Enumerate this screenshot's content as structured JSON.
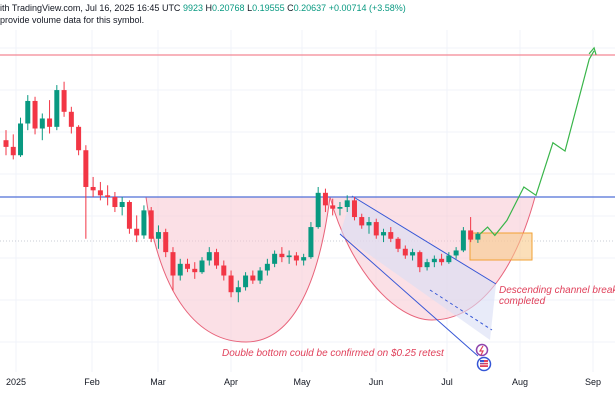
{
  "header": {
    "line1_prefix": "ith TradingView.com, Jul 16, 2025 16:45 UTC",
    "ohlc": {
      "open_label": "",
      "open_value": "9923",
      "high_label": "H",
      "high_value": "0.20768",
      "low_label": "L",
      "low_value": "0.19555",
      "close_label": "C",
      "close_value": "0.20637",
      "change": "+0.00714 (+3.58%)"
    },
    "line2": "provide volume data for this symbol."
  },
  "x_axis": {
    "labels": [
      "2025",
      "Feb",
      "Mar",
      "Apr",
      "May",
      "Jun",
      "Jul",
      "Aug",
      "Sep"
    ]
  },
  "annotations": {
    "double_bottom": "Double bottom could be confirmed on $0.25 retest",
    "channel_line1": "Descending channel breako",
    "channel_line2": "completed"
  },
  "colors": {
    "up": "#089981",
    "down": "#f23645",
    "resistance": "#4f6fd8",
    "target_line": "#f06a7a",
    "cup_fill": "#f7c7d2",
    "cup_stroke": "#e8637a",
    "channel": "#3556d6",
    "channel_fill": "#d8def5",
    "projection": "#39b54a",
    "box_fill": "#f9c98a",
    "box_stroke": "#f2a033",
    "annotation_text": "#e0405a"
  },
  "chart_data": {
    "type": "candlestick",
    "title": "",
    "x_labels": [
      "2025",
      "Feb",
      "Mar",
      "Apr",
      "May",
      "Jun",
      "Jul",
      "Aug",
      "Sep"
    ],
    "levels": [
      {
        "name": "resistance",
        "value": 0.25
      },
      {
        "name": "target",
        "value": 0.42
      }
    ],
    "candles": [
      {
        "t": "Jan 01",
        "o": 0.318,
        "h": 0.33,
        "l": 0.3,
        "c": 0.31
      },
      {
        "t": "Jan 04",
        "o": 0.31,
        "h": 0.325,
        "l": 0.295,
        "c": 0.3
      },
      {
        "t": "Jan 07",
        "o": 0.3,
        "h": 0.345,
        "l": 0.298,
        "c": 0.338
      },
      {
        "t": "Jan 10",
        "o": 0.338,
        "h": 0.372,
        "l": 0.33,
        "c": 0.365
      },
      {
        "t": "Jan 13",
        "o": 0.365,
        "h": 0.37,
        "l": 0.325,
        "c": 0.332
      },
      {
        "t": "Jan 16",
        "o": 0.332,
        "h": 0.35,
        "l": 0.318,
        "c": 0.344
      },
      {
        "t": "Jan 19",
        "o": 0.344,
        "h": 0.366,
        "l": 0.326,
        "c": 0.334
      },
      {
        "t": "Jan 22",
        "o": 0.334,
        "h": 0.384,
        "l": 0.33,
        "c": 0.378
      },
      {
        "t": "Jan 25",
        "o": 0.378,
        "h": 0.388,
        "l": 0.346,
        "c": 0.352
      },
      {
        "t": "Jan 28",
        "o": 0.352,
        "h": 0.358,
        "l": 0.326,
        "c": 0.334
      },
      {
        "t": "Jan 31",
        "o": 0.334,
        "h": 0.336,
        "l": 0.3,
        "c": 0.306
      },
      {
        "t": "Feb 03",
        "o": 0.306,
        "h": 0.312,
        "l": 0.2,
        "c": 0.262
      },
      {
        "t": "Feb 06",
        "o": 0.262,
        "h": 0.274,
        "l": 0.25,
        "c": 0.258
      },
      {
        "t": "Feb 09",
        "o": 0.258,
        "h": 0.268,
        "l": 0.246,
        "c": 0.252
      },
      {
        "t": "Feb 12",
        "o": 0.252,
        "h": 0.264,
        "l": 0.24,
        "c": 0.25
      },
      {
        "t": "Feb 15",
        "o": 0.25,
        "h": 0.256,
        "l": 0.232,
        "c": 0.238
      },
      {
        "t": "Feb 18",
        "o": 0.238,
        "h": 0.25,
        "l": 0.228,
        "c": 0.244
      },
      {
        "t": "Feb 21",
        "o": 0.244,
        "h": 0.246,
        "l": 0.206,
        "c": 0.212
      },
      {
        "t": "Feb 24",
        "o": 0.212,
        "h": 0.228,
        "l": 0.196,
        "c": 0.204
      },
      {
        "t": "Feb 27",
        "o": 0.204,
        "h": 0.24,
        "l": 0.2,
        "c": 0.234
      },
      {
        "t": "Mar 02",
        "o": 0.234,
        "h": 0.238,
        "l": 0.196,
        "c": 0.2
      },
      {
        "t": "Mar 05",
        "o": 0.2,
        "h": 0.216,
        "l": 0.188,
        "c": 0.208
      },
      {
        "t": "Mar 08",
        "o": 0.208,
        "h": 0.212,
        "l": 0.178,
        "c": 0.184
      },
      {
        "t": "Mar 11",
        "o": 0.184,
        "h": 0.19,
        "l": 0.138,
        "c": 0.156
      },
      {
        "t": "Mar 14",
        "o": 0.156,
        "h": 0.176,
        "l": 0.15,
        "c": 0.17
      },
      {
        "t": "Mar 17",
        "o": 0.17,
        "h": 0.176,
        "l": 0.16,
        "c": 0.164
      },
      {
        "t": "Mar 20",
        "o": 0.164,
        "h": 0.172,
        "l": 0.152,
        "c": 0.16
      },
      {
        "t": "Mar 23",
        "o": 0.16,
        "h": 0.178,
        "l": 0.158,
        "c": 0.174
      },
      {
        "t": "Mar 26",
        "o": 0.174,
        "h": 0.19,
        "l": 0.168,
        "c": 0.184
      },
      {
        "t": "Mar 29",
        "o": 0.184,
        "h": 0.188,
        "l": 0.164,
        "c": 0.168
      },
      {
        "t": "Apr 01",
        "o": 0.168,
        "h": 0.174,
        "l": 0.15,
        "c": 0.156
      },
      {
        "t": "Apr 04",
        "o": 0.156,
        "h": 0.162,
        "l": 0.13,
        "c": 0.136
      },
      {
        "t": "Apr 07",
        "o": 0.136,
        "h": 0.15,
        "l": 0.124,
        "c": 0.142
      },
      {
        "t": "Apr 10",
        "o": 0.142,
        "h": 0.16,
        "l": 0.138,
        "c": 0.156
      },
      {
        "t": "Apr 13",
        "o": 0.156,
        "h": 0.162,
        "l": 0.146,
        "c": 0.15
      },
      {
        "t": "Apr 16",
        "o": 0.15,
        "h": 0.166,
        "l": 0.146,
        "c": 0.162
      },
      {
        "t": "Apr 19",
        "o": 0.162,
        "h": 0.176,
        "l": 0.156,
        "c": 0.17
      },
      {
        "t": "Apr 22",
        "o": 0.17,
        "h": 0.186,
        "l": 0.166,
        "c": 0.182
      },
      {
        "t": "Apr 25",
        "o": 0.182,
        "h": 0.19,
        "l": 0.172,
        "c": 0.178
      },
      {
        "t": "Apr 28",
        "o": 0.178,
        "h": 0.186,
        "l": 0.17,
        "c": 0.18
      },
      {
        "t": "May 01",
        "o": 0.18,
        "h": 0.184,
        "l": 0.168,
        "c": 0.174
      },
      {
        "t": "May 04",
        "o": 0.174,
        "h": 0.182,
        "l": 0.168,
        "c": 0.178
      },
      {
        "t": "May 07",
        "o": 0.178,
        "h": 0.22,
        "l": 0.176,
        "c": 0.214
      },
      {
        "t": "May 10",
        "o": 0.214,
        "h": 0.262,
        "l": 0.212,
        "c": 0.255
      },
      {
        "t": "May 13",
        "o": 0.255,
        "h": 0.26,
        "l": 0.232,
        "c": 0.24
      },
      {
        "t": "May 16",
        "o": 0.24,
        "h": 0.248,
        "l": 0.228,
        "c": 0.236
      },
      {
        "t": "May 19",
        "o": 0.236,
        "h": 0.244,
        "l": 0.228,
        "c": 0.238
      },
      {
        "t": "May 22",
        "o": 0.238,
        "h": 0.252,
        "l": 0.232,
        "c": 0.246
      },
      {
        "t": "May 25",
        "o": 0.246,
        "h": 0.25,
        "l": 0.222,
        "c": 0.226
      },
      {
        "t": "May 28",
        "o": 0.226,
        "h": 0.23,
        "l": 0.212,
        "c": 0.216
      },
      {
        "t": "May 31",
        "o": 0.216,
        "h": 0.226,
        "l": 0.206,
        "c": 0.22
      },
      {
        "t": "Jun 03",
        "o": 0.22,
        "h": 0.224,
        "l": 0.2,
        "c": 0.204
      },
      {
        "t": "Jun 06",
        "o": 0.204,
        "h": 0.212,
        "l": 0.196,
        "c": 0.208
      },
      {
        "t": "Jun 09",
        "o": 0.208,
        "h": 0.214,
        "l": 0.196,
        "c": 0.2
      },
      {
        "t": "Jun 12",
        "o": 0.2,
        "h": 0.202,
        "l": 0.184,
        "c": 0.188
      },
      {
        "t": "Jun 15",
        "o": 0.188,
        "h": 0.192,
        "l": 0.176,
        "c": 0.18
      },
      {
        "t": "Jun 18",
        "o": 0.18,
        "h": 0.188,
        "l": 0.174,
        "c": 0.184
      },
      {
        "t": "Jun 21",
        "o": 0.184,
        "h": 0.186,
        "l": 0.16,
        "c": 0.166
      },
      {
        "t": "Jun 24",
        "o": 0.166,
        "h": 0.176,
        "l": 0.162,
        "c": 0.172
      },
      {
        "t": "Jun 27",
        "o": 0.172,
        "h": 0.18,
        "l": 0.166,
        "c": 0.176
      },
      {
        "t": "Jun 30",
        "o": 0.176,
        "h": 0.182,
        "l": 0.168,
        "c": 0.172
      },
      {
        "t": "Jul 03",
        "o": 0.172,
        "h": 0.184,
        "l": 0.17,
        "c": 0.18
      },
      {
        "t": "Jul 06",
        "o": 0.18,
        "h": 0.19,
        "l": 0.176,
        "c": 0.186
      },
      {
        "t": "Jul 09",
        "o": 0.186,
        "h": 0.214,
        "l": 0.184,
        "c": 0.21
      },
      {
        "t": "Jul 12",
        "o": 0.21,
        "h": 0.226,
        "l": 0.196,
        "c": 0.199
      },
      {
        "t": "Jul 15",
        "o": 0.199,
        "h": 0.208,
        "l": 0.195,
        "c": 0.206
      }
    ],
    "projection_path": [
      {
        "t": "Jul 16",
        "v": 0.206
      },
      {
        "t": "Jul 19",
        "v": 0.214
      },
      {
        "t": "Jul 22",
        "v": 0.204
      },
      {
        "t": "Jul 27",
        "v": 0.222
      },
      {
        "t": "Aug 03",
        "v": 0.262
      },
      {
        "t": "Aug 08",
        "v": 0.252
      },
      {
        "t": "Aug 15",
        "v": 0.315
      },
      {
        "t": "Aug 20",
        "v": 0.305
      },
      {
        "t": "Aug 30",
        "v": 0.415
      },
      {
        "t": "Sep 01",
        "v": 0.425
      }
    ]
  }
}
